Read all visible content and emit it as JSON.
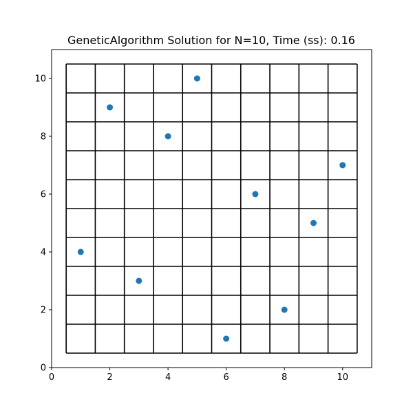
{
  "chart_data": {
    "type": "scatter",
    "title": "GeneticAlgorithm Solution for N=10, Time (ss): 0.16",
    "xlabel": "",
    "ylabel": "",
    "xlim": [
      0,
      11
    ],
    "ylim": [
      0,
      11
    ],
    "xticks": [
      0,
      2,
      4,
      6,
      8,
      10
    ],
    "yticks": [
      0,
      2,
      4,
      6,
      8,
      10
    ],
    "board": {
      "size": 10,
      "from": 0.5,
      "to": 10.5,
      "grid_color": "#000000"
    },
    "marker_color": "#1f77b4",
    "points": [
      {
        "x": 1,
        "y": 4
      },
      {
        "x": 2,
        "y": 9
      },
      {
        "x": 3,
        "y": 3
      },
      {
        "x": 4,
        "y": 8
      },
      {
        "x": 5,
        "y": 10
      },
      {
        "x": 6,
        "y": 1
      },
      {
        "x": 7,
        "y": 6
      },
      {
        "x": 8,
        "y": 2
      },
      {
        "x": 9,
        "y": 5
      },
      {
        "x": 10,
        "y": 7
      }
    ]
  }
}
